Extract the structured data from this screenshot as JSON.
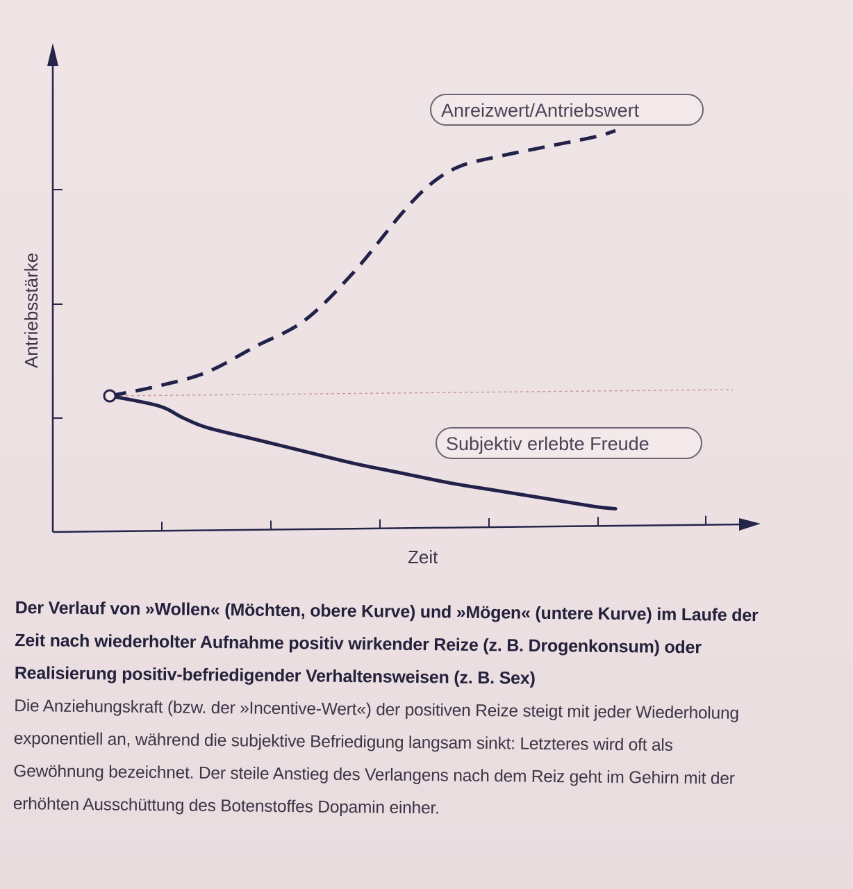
{
  "chart_data": {
    "type": "line",
    "ylabel": "Antriebsstärke",
    "xlabel": "Zeit",
    "x_ticks": 6,
    "y_ticks": 3,
    "start_point": {
      "x": 0,
      "y": 0
    },
    "series": [
      {
        "name": "Anreizwert/Antriebswert",
        "style": "dashed",
        "color": "#22214a",
        "x": [
          0,
          0.5,
          1.0,
          1.5,
          2.0,
          2.5,
          3.0,
          3.3,
          3.6,
          4.0,
          4.5,
          5.0,
          5.2
        ],
        "y": [
          0,
          0.5,
          1.2,
          2.5,
          3.8,
          6.2,
          9.2,
          10.7,
          11.6,
          12.1,
          12.6,
          13.1,
          13.4
        ]
      },
      {
        "name": "Subjektiv erlebte Freude",
        "style": "solid",
        "color": "#22214a",
        "x": [
          0,
          0.5,
          0.75,
          1.0,
          1.5,
          2.0,
          2.5,
          3.0,
          3.5,
          4.0,
          4.5,
          5.0,
          5.2
        ],
        "y": [
          0,
          -0.5,
          -1.1,
          -1.6,
          -2.2,
          -2.8,
          -3.4,
          -3.9,
          -4.4,
          -4.8,
          -5.2,
          -5.6,
          -5.7
        ]
      }
    ]
  },
  "caption": {
    "title": "Der Verlauf von »Wollen« (Möchten, obere Kurve) und »Mögen« (untere Kurve) im Laufe der Zeit nach wiederholter Aufnahme positiv wirkender Reize (z. B. Drogenkonsum) oder Realisierung positiv-befriedigender Verhaltensweisen (z. B. Sex)",
    "body": "Die Anziehungskraft (bzw. der »Incentive-Wert«) der positiven Reize steigt mit jeder Wiederholung exponentiell an, während die subjektive Befriedigung langsam sinkt: Letzteres wird oft als Gewöhnung bezeichnet. Der steile Anstieg des Verlangens nach dem Reiz geht im Gehirn mit der erhöhten Ausschüttung des Botenstoffes Dopamin einher."
  }
}
